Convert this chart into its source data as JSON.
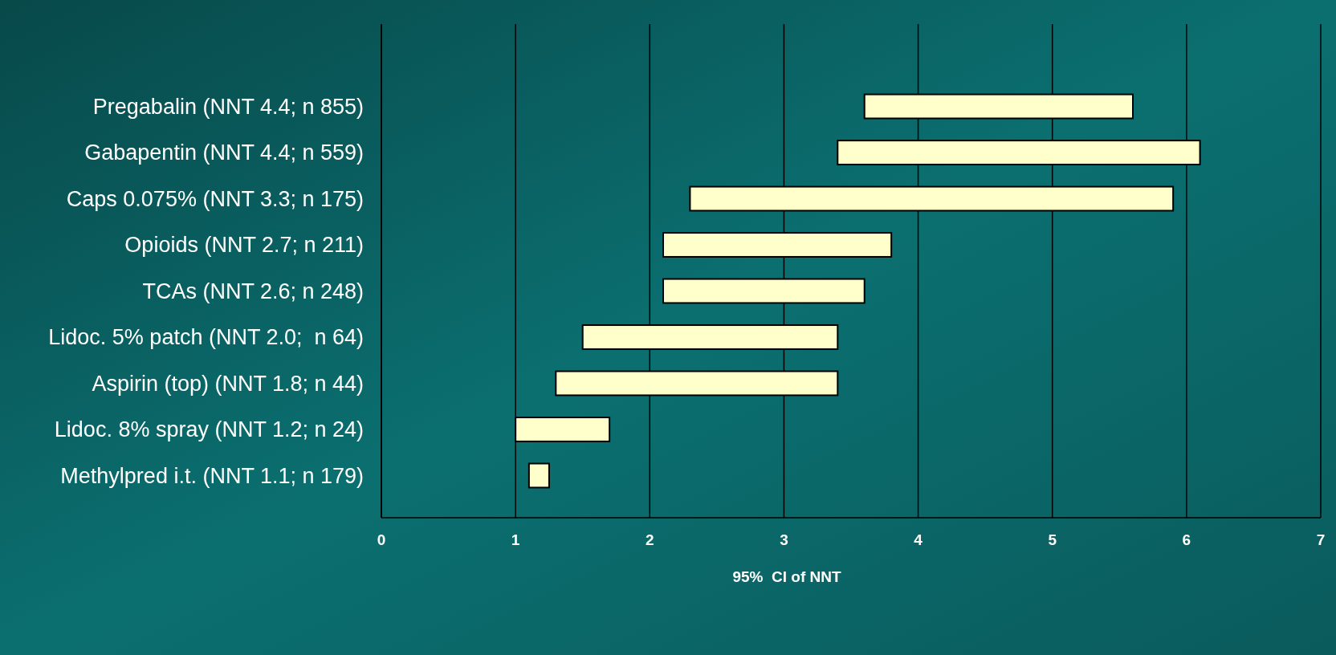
{
  "chart_data": {
    "type": "bar",
    "orientation": "horizontal",
    "xlabel": "95%  CI of NNT",
    "categories": [
      "Pregabalin (NNT 4.4; n 855)",
      "Gabapentin (NNT 4.4; n 559)",
      "Caps 0.075% (NNT 3.3; n 175)",
      "Opioids (NNT 2.7; n 211)",
      "TCAs (NNT 2.6; n 248)",
      "Lidoc. 5% patch (NNT 2.0;  n 64)",
      "Aspirin (top) (NNT 1.8; n 44)",
      "Lidoc. 8% spray (NNT 1.2; n 24)",
      "Methylpred i.t. (NNT 1.1; n 179)"
    ],
    "base": [
      3.6,
      3.4,
      2.3,
      2.1,
      2.1,
      1.5,
      1.3,
      1.0,
      1.1
    ],
    "values": [
      2.0,
      2.7,
      3.6,
      1.7,
      1.5,
      1.9,
      2.1,
      0.7,
      0.15
    ],
    "color": "#ffffcc",
    "xlim": [
      0,
      7
    ],
    "xticks": [
      0,
      1,
      2,
      3,
      4,
      5,
      6,
      7
    ],
    "grid": "x"
  }
}
